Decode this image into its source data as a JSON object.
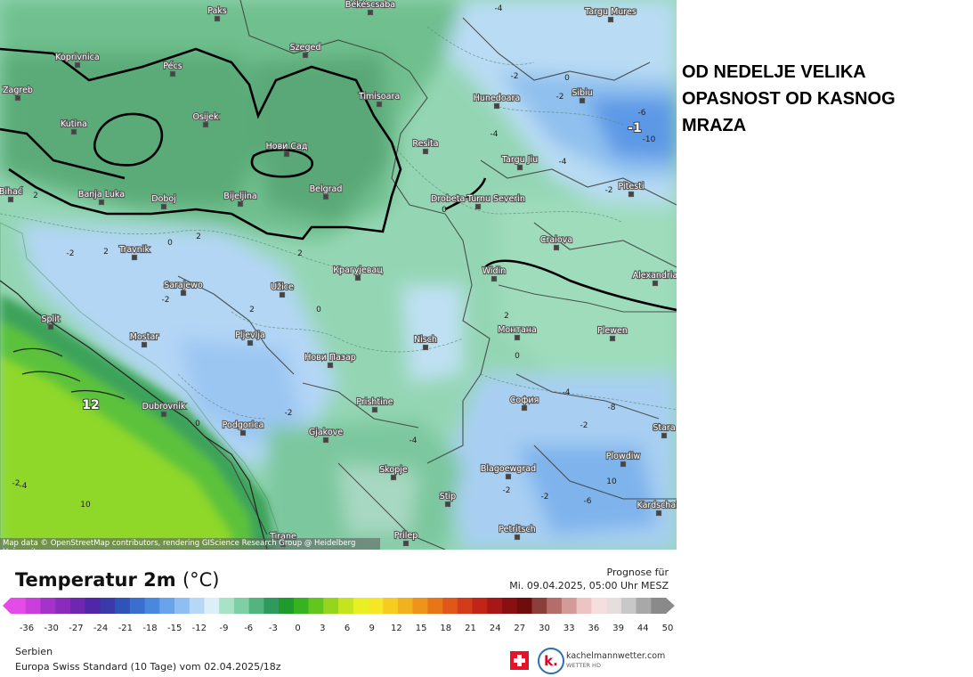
{
  "headline": {
    "line1": "OD NEDELJE VELIKA",
    "line2": "OPASNOST OD KASNOG",
    "line3": "MRAZA"
  },
  "map": {
    "attribution": "Map data © OpenStreetMap contributors, rendering GIScience Research Group @ Heidelberg University",
    "cities": [
      "Paks",
      "Békéscsaba",
      "Targu Mures",
      "Koprivnica",
      "Pécs",
      "Szeged",
      "Zagreb",
      "Timisoara",
      "Hunedoara",
      "Sibiu",
      "Osijek",
      "Kutina",
      "Нови Сад",
      "Resita",
      "Targu Jiu",
      "Banja Luka",
      "Doboj",
      "Bijeljina",
      "Belgrad",
      "Drobeta-Turnu Severin",
      "Pitesti",
      "Bihać",
      "Travnik",
      "Крагујевац",
      "Craiova",
      "Sarajewo",
      "Užice",
      "Widin",
      "Alexandria",
      "Mostar",
      "Pljevlja",
      "Nisch",
      "Монтана",
      "Plewen",
      "Нови Пазар",
      "Dubrovnik",
      "Prishtine",
      "София",
      "Podgorica",
      "Gjakove",
      "Stara",
      "Plowdiw",
      "Skopje",
      "Blagoewgrad",
      "Kardschali",
      "Stip",
      "Petritsch",
      "Tirane",
      "Prilep",
      "Split"
    ],
    "contour_labels": [
      "-4",
      "-2",
      "-2",
      "0",
      "-4",
      "-1",
      "-6",
      "-10",
      "-2",
      "-4",
      "2",
      "2",
      "2",
      "0",
      "-2",
      "2",
      "0",
      "-2",
      "2",
      "0",
      "-4",
      "0",
      "-2",
      "-4",
      "-2",
      "-8",
      "-6",
      "10",
      "12",
      "10",
      "0",
      "2",
      "-2",
      "-2",
      "-4",
      "-2"
    ]
  },
  "legend": {
    "title": "Temperatur 2m",
    "unit": "(°C)",
    "ticks": [
      "-36",
      "-30",
      "-27",
      "-24",
      "-21",
      "-18",
      "-15",
      "-12",
      "-9",
      "-6",
      "-3",
      "0",
      "3",
      "6",
      "9",
      "12",
      "15",
      "18",
      "21",
      "24",
      "27",
      "30",
      "33",
      "36",
      "39",
      "44",
      "50"
    ],
    "colors": [
      "#e54be8",
      "#c93fdb",
      "#a632cc",
      "#8a2bbd",
      "#6d27b0",
      "#5126a8",
      "#3b3aa8",
      "#2f53b8",
      "#3a6fd0",
      "#4a88e0",
      "#68a3ec",
      "#8ebef2",
      "#b6d7f6",
      "#dceefa",
      "#a8e3c8",
      "#7fcfa5",
      "#54b47f",
      "#2f9a5e",
      "#1e9a2e",
      "#36b321",
      "#62c61f",
      "#95d61c",
      "#c3e41e",
      "#e8ef22",
      "#f5e626",
      "#f5cd21",
      "#f2b11e",
      "#ee941b",
      "#e87619",
      "#df5818",
      "#d23c18",
      "#c22418",
      "#a81717",
      "#8a0f10",
      "#6e0d0c",
      "#8c3f3a",
      "#b36e6a",
      "#d49a98",
      "#eec3c3",
      "#f7dede",
      "#e6dede",
      "#c8c8c8",
      "#a8a8a8",
      "#8a8a8a"
    ]
  },
  "forecast": {
    "label": "Prognose für",
    "datetime": "Mi. 09.04.2025, 05:00 Uhr MESZ"
  },
  "meta": {
    "region": "Serbien",
    "model": "Europa Swiss Standard (10 Tage) vom  02.04.2025/18z"
  },
  "brand": {
    "name": "kachelmannwetter.com",
    "sub": "WETTER HD",
    "logo_letter": "k."
  }
}
